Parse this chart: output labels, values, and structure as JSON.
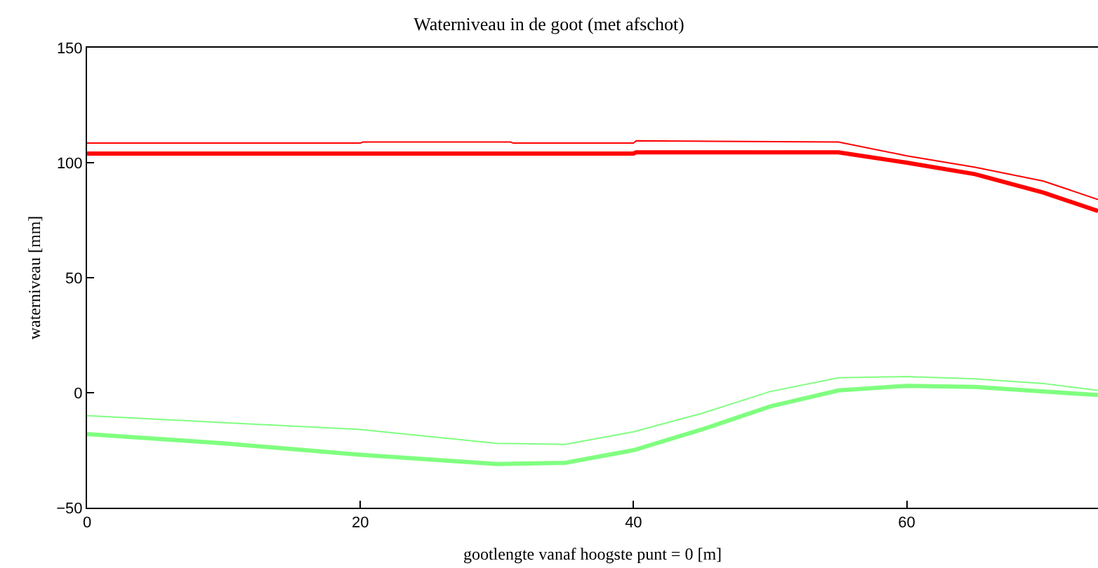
{
  "chart_data": {
    "type": "line",
    "title": "Waterniveau in de goot (met afschot)",
    "xlabel": "gootlengte vanaf hoogste punt = 0 [m]",
    "ylabel": "waterniveau [mm]",
    "xlim": [
      0,
      74
    ],
    "xticks": [
      0,
      20,
      40,
      60
    ],
    "ylim": [
      -50,
      150
    ],
    "yticks": [
      {
        "value": -50,
        "label": "−50"
      },
      0,
      50,
      100,
      150
    ],
    "marker": "none",
    "line_style": "solid",
    "series": [
      {
        "color": "#ff0000",
        "x": [
          0,
          20,
          20.2,
          31,
          31.2,
          40,
          40.2,
          55,
          60,
          65,
          70,
          74
        ],
        "values": [
          108.5,
          108.5,
          109,
          109,
          108.5,
          108.5,
          109.5,
          109,
          103,
          98,
          92,
          84
        ]
      },
      {
        "color": "#ff0000",
        "x": [
          0,
          40,
          40.2,
          55,
          60,
          65,
          70,
          74
        ],
        "values": [
          104,
          104,
          104.5,
          104.5,
          100,
          95,
          87,
          79
        ]
      },
      {
        "color": "#80ff80",
        "x": [
          0,
          10,
          20,
          30,
          35,
          40,
          45,
          50,
          55,
          60,
          65,
          70,
          74
        ],
        "values": [
          -10,
          -13,
          -16,
          -22,
          -22.5,
          -17,
          -9,
          0.5,
          6.5,
          7,
          6,
          4,
          1
        ]
      },
      {
        "color": "#80ff80",
        "x": [
          0,
          10,
          20,
          30,
          35,
          40,
          45,
          50,
          55,
          60,
          65,
          70,
          74
        ],
        "values": [
          -18,
          -22,
          -27,
          -31,
          -30.5,
          -25,
          -16,
          -6,
          1,
          3,
          2.5,
          0.5,
          -1
        ]
      }
    ]
  }
}
